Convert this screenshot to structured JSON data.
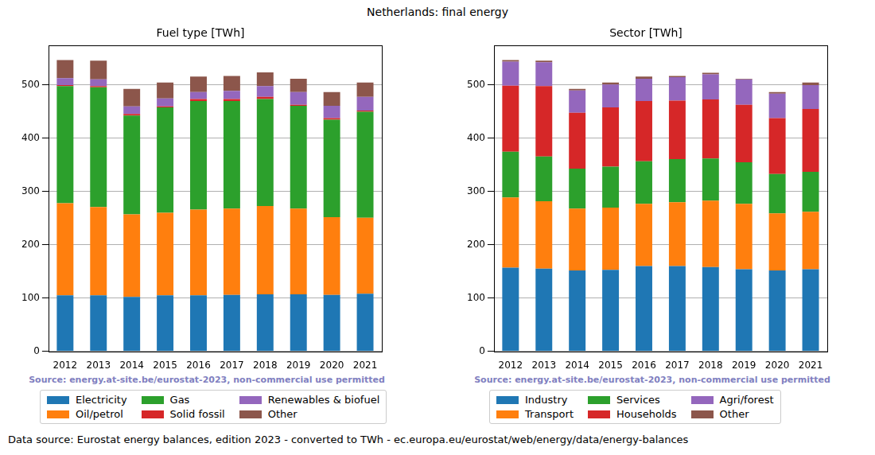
{
  "title": "Netherlands: final energy",
  "footnote": "Data source: Eurostat energy balances, edition 2023 - converted to TWh - ec.europa.eu/eurostat/web/energy/data/energy-balances",
  "chart_data": [
    {
      "type": "bar",
      "title": "Fuel type [TWh]",
      "stacked": true,
      "grid": true,
      "source": "Source: energy.at-site.be/eurostat-2023, non-commercial use permitted",
      "categories": [
        "2012",
        "2013",
        "2014",
        "2015",
        "2016",
        "2017",
        "2018",
        "2019",
        "2020",
        "2021"
      ],
      "ylim": [
        0,
        575
      ],
      "yticks": [
        0,
        100,
        200,
        300,
        400,
        500
      ],
      "series": [
        {
          "name": "Electricity",
          "color": "#1f77b4",
          "values": [
            105,
            105,
            102,
            105,
            105,
            106,
            107,
            107,
            106,
            108
          ]
        },
        {
          "name": "Oil/petrol",
          "color": "#ff7f0e",
          "values": [
            173,
            166,
            155,
            155,
            161,
            162,
            166,
            161,
            146,
            143
          ]
        },
        {
          "name": "Gas",
          "color": "#2ca02c",
          "values": [
            220,
            225,
            186,
            198,
            204,
            202,
            201,
            193,
            183,
            199
          ]
        },
        {
          "name": "Solid fossil",
          "color": "#d62728",
          "values": [
            2,
            2,
            3,
            2,
            4,
            4,
            4,
            2,
            3,
            2
          ]
        },
        {
          "name": "Renewables & biofuel",
          "color": "#9467bd",
          "values": [
            13,
            13,
            14,
            15,
            13,
            15,
            20,
            24,
            23,
            26
          ]
        },
        {
          "name": "Other",
          "color": "#8c564b",
          "values": [
            34,
            35,
            33,
            30,
            29,
            28,
            26,
            25,
            26,
            27
          ]
        }
      ]
    },
    {
      "type": "bar",
      "title": "Sector [TWh]",
      "stacked": true,
      "grid": true,
      "source": "Source: energy.at-site.be/eurostat-2023, non-commercial use permitted",
      "categories": [
        "2012",
        "2013",
        "2014",
        "2015",
        "2016",
        "2017",
        "2018",
        "2019",
        "2020",
        "2021"
      ],
      "ylim": [
        0,
        575
      ],
      "yticks": [
        0,
        100,
        200,
        300,
        400,
        500
      ],
      "series": [
        {
          "name": "Industry",
          "color": "#1f77b4",
          "values": [
            157,
            155,
            152,
            153,
            160,
            160,
            158,
            154,
            152,
            154
          ]
        },
        {
          "name": "Transport",
          "color": "#ff7f0e",
          "values": [
            132,
            127,
            116,
            117,
            117,
            120,
            125,
            123,
            107,
            108
          ]
        },
        {
          "name": "Services",
          "color": "#2ca02c",
          "values": [
            86,
            84,
            75,
            77,
            80,
            81,
            79,
            78,
            74,
            75
          ]
        },
        {
          "name": "Households",
          "color": "#d62728",
          "values": [
            124,
            132,
            105,
            111,
            113,
            110,
            111,
            108,
            105,
            118
          ]
        },
        {
          "name": "Agri/forest",
          "color": "#9467bd",
          "values": [
            45,
            45,
            42,
            43,
            42,
            44,
            47,
            48,
            46,
            45
          ]
        },
        {
          "name": "Other",
          "color": "#8c564b",
          "values": [
            3,
            3,
            3,
            4,
            4,
            2,
            3,
            1,
            3,
            5
          ]
        }
      ]
    }
  ]
}
